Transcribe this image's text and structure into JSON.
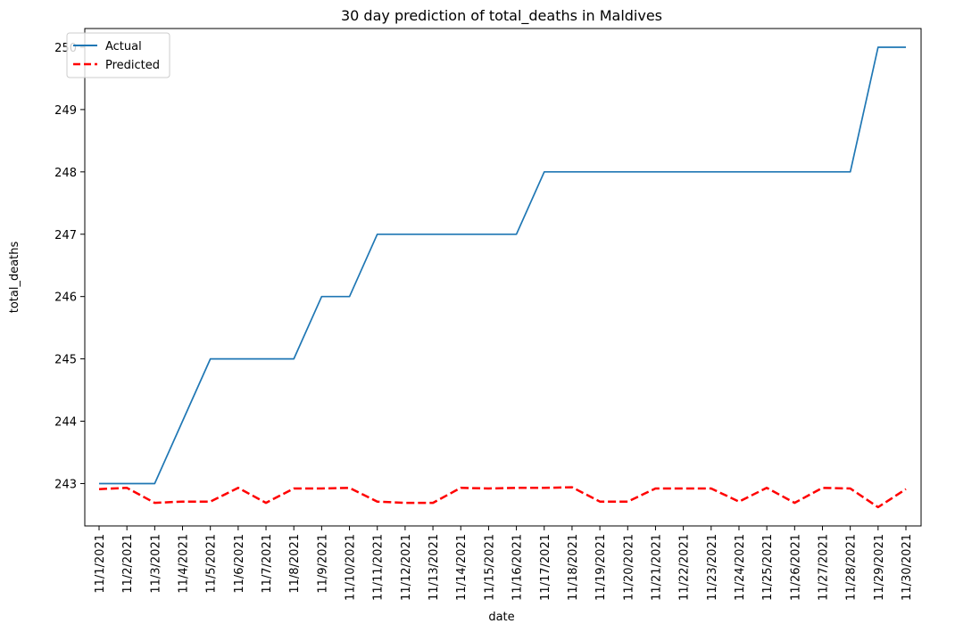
{
  "chart_data": {
    "type": "line",
    "title": "30 day prediction of total_deaths in Maldives",
    "xlabel": "date",
    "ylabel": "total_deaths",
    "categories": [
      "11/1/2021",
      "11/2/2021",
      "11/3/2021",
      "11/4/2021",
      "11/5/2021",
      "11/6/2021",
      "11/7/2021",
      "11/8/2021",
      "11/9/2021",
      "11/10/2021",
      "11/11/2021",
      "11/12/2021",
      "11/13/2021",
      "11/14/2021",
      "11/15/2021",
      "11/16/2021",
      "11/17/2021",
      "11/18/2021",
      "11/19/2021",
      "11/20/2021",
      "11/21/2021",
      "11/22/2021",
      "11/23/2021",
      "11/24/2021",
      "11/25/2021",
      "11/26/2021",
      "11/27/2021",
      "11/28/2021",
      "11/29/2021",
      "11/30/2021"
    ],
    "series": [
      {
        "name": "Actual",
        "color": "#1f77b4",
        "style": "solid",
        "values": [
          243,
          243,
          243,
          244,
          245,
          245,
          245,
          245,
          246,
          246,
          247,
          247,
          247,
          247,
          247,
          247,
          248,
          248,
          248,
          248,
          248,
          248,
          248,
          248,
          248,
          248,
          248,
          248,
          250,
          250
        ]
      },
      {
        "name": "Predicted",
        "color": "#ff0000",
        "style": "dashed",
        "values": [
          242.91,
          242.93,
          242.69,
          242.71,
          242.71,
          242.93,
          242.69,
          242.92,
          242.92,
          242.93,
          242.71,
          242.69,
          242.69,
          242.93,
          242.92,
          242.93,
          242.93,
          242.94,
          242.71,
          242.71,
          242.92,
          242.92,
          242.92,
          242.71,
          242.93,
          242.69,
          242.93,
          242.92,
          242.62,
          242.91
        ]
      }
    ],
    "yticks": [
      243,
      244,
      245,
      246,
      247,
      248,
      249,
      250
    ],
    "ylim": [
      242.32,
      250.3
    ],
    "grid": false,
    "legend_position": "upper-left"
  }
}
